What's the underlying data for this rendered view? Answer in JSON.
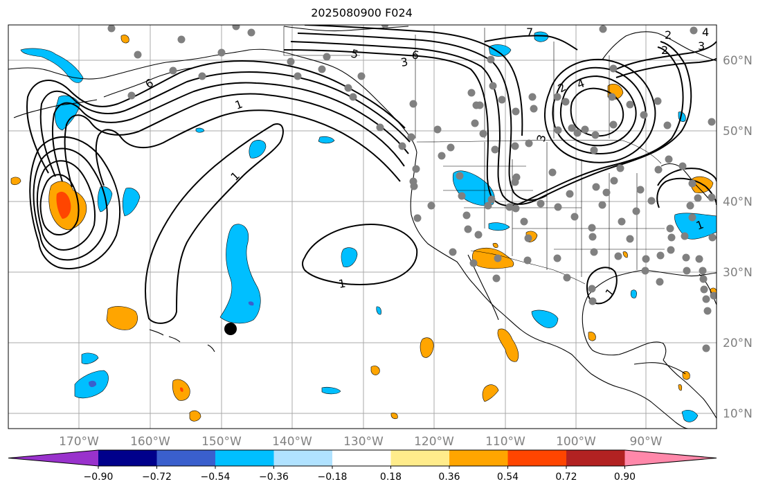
{
  "title": "2025080900 F024",
  "lon_labels": [
    "170°W",
    "160°W",
    "150°W",
    "140°W",
    "130°W",
    "120°W",
    "110°W",
    "100°W",
    "90°W"
  ],
  "lat_labels": [
    "60°N",
    "50°N",
    "40°N",
    "30°N",
    "20°N",
    "10°N"
  ],
  "colorbar": {
    "ticks": [
      "−0.90",
      "−0.72",
      "−0.54",
      "−0.36",
      "−0.18",
      "0.18",
      "0.36",
      "0.54",
      "0.72",
      "0.90"
    ],
    "colors": [
      "#9932CC",
      "#00008B",
      "#3A5FCD",
      "#00BFFF",
      "#B0E2FF",
      "#FFFFFF",
      "#FFEC8B",
      "#FFA500",
      "#FF4500",
      "#B22222",
      "#FF88AA"
    ]
  },
  "contour_labels": [
    "1",
    "1",
    "1",
    "1",
    "1",
    "2",
    "2",
    "2",
    "3",
    "3",
    "3",
    "4",
    "4",
    "5",
    "6",
    "6",
    "7"
  ],
  "colors": {
    "grid": "#A9A9A9",
    "station": "#808080",
    "positive": "#FFA500",
    "negative": "#00BFFF"
  }
}
